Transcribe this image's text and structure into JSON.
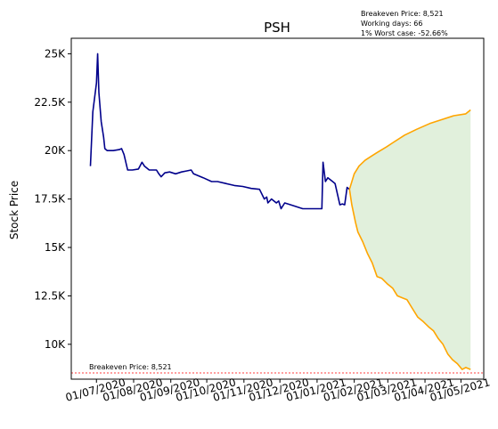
{
  "info_box": {
    "line1": "Breakeven Price: 8,521",
    "line2": "Working days: 66",
    "line3": "1% Worst case: -52.66%"
  },
  "chart_data": {
    "type": "line",
    "title": "PSH",
    "xlabel": "",
    "ylabel": "Stock Price",
    "ylim": [
      8200,
      25800
    ],
    "xlim": [
      "2020-06-10",
      "2021-05-20"
    ],
    "grid": false,
    "x_ticks": [
      "2020-07-01",
      "2020-08-01",
      "2020-09-01",
      "2020-10-01",
      "2020-11-01",
      "2020-12-01",
      "2021-01-01",
      "2021-02-01",
      "2021-03-01",
      "2021-04-01",
      "2021-05-01"
    ],
    "x_tick_labels": [
      "01/07/2020",
      "01/08/2020",
      "01/09/2020",
      "01/10/2020",
      "01/11/2020",
      "01/12/2020",
      "01/01/2021",
      "01/02/2021",
      "01/03/2021",
      "01/04/2021",
      "01/05/2021"
    ],
    "y_ticks": [
      10000,
      12500,
      15000,
      17500,
      20000,
      22500,
      25000
    ],
    "y_tick_labels": [
      "10K",
      "12.5K",
      "15K",
      "17.5K",
      "20K",
      "22.5K",
      "25K"
    ],
    "colors": {
      "history": "#00008b",
      "projection": "#ffa500",
      "band_fill": "#e1f0dc",
      "breakeven": "#ff0000"
    },
    "series": [
      {
        "role": "history",
        "x": [
          "2020-06-26",
          "2020-06-28",
          "2020-07-01",
          "2020-07-02",
          "2020-07-03",
          "2020-07-05",
          "2020-07-07",
          "2020-07-08",
          "2020-07-10",
          "2020-07-15",
          "2020-07-20",
          "2020-07-22",
          "2020-07-24",
          "2020-07-27",
          "2020-07-31",
          "2020-08-05",
          "2020-08-08",
          "2020-08-10",
          "2020-08-14",
          "2020-08-20",
          "2020-08-22",
          "2020-08-24",
          "2020-08-27",
          "2020-08-31",
          "2020-09-05",
          "2020-09-10",
          "2020-09-14",
          "2020-09-18",
          "2020-09-20",
          "2020-09-24",
          "2020-09-28",
          "2020-10-05",
          "2020-10-10",
          "2020-10-17",
          "2020-10-24",
          "2020-10-31",
          "2020-11-07",
          "2020-11-14",
          "2020-11-18",
          "2020-11-20",
          "2020-11-21",
          "2020-11-24",
          "2020-11-28",
          "2020-11-30",
          "2020-12-02",
          "2020-12-05",
          "2020-12-10",
          "2020-12-20",
          "2020-12-31",
          "2021-01-05",
          "2021-01-06",
          "2021-01-08",
          "2021-01-10",
          "2021-01-14",
          "2021-01-16",
          "2021-01-20",
          "2021-01-22",
          "2021-01-24",
          "2021-01-26",
          "2021-01-28"
        ],
        "y": [
          19200,
          22000,
          23500,
          25000,
          23000,
          21500,
          20700,
          20100,
          20000,
          20000,
          20050,
          20100,
          19800,
          19000,
          19000,
          19050,
          19400,
          19200,
          19000,
          19000,
          18800,
          18650,
          18850,
          18900,
          18800,
          18900,
          18950,
          19000,
          18800,
          18700,
          18600,
          18400,
          18400,
          18300,
          18200,
          18150,
          18050,
          18000,
          17500,
          17600,
          17300,
          17500,
          17300,
          17400,
          17000,
          17300,
          17200,
          17000,
          17000,
          17000,
          19400,
          18400,
          18600,
          18400,
          18300,
          17200,
          17250,
          17200,
          18100,
          18000
        ]
      },
      {
        "role": "projection-upper",
        "x": [
          "2021-01-28",
          "2021-02-01",
          "2021-02-05",
          "2021-02-10",
          "2021-02-15",
          "2021-02-20",
          "2021-02-28",
          "2021-03-05",
          "2021-03-15",
          "2021-03-25",
          "2021-04-05",
          "2021-04-15",
          "2021-04-25",
          "2021-05-05",
          "2021-05-09"
        ],
        "y": [
          18000,
          18800,
          19200,
          19500,
          19700,
          19900,
          20200,
          20400,
          20800,
          21100,
          21400,
          21600,
          21800,
          21900,
          22100
        ]
      },
      {
        "role": "projection-lower",
        "x": [
          "2021-01-28",
          "2021-01-30",
          "2021-02-02",
          "2021-02-04",
          "2021-02-08",
          "2021-02-12",
          "2021-02-16",
          "2021-02-20",
          "2021-02-24",
          "2021-03-01",
          "2021-03-05",
          "2021-03-09",
          "2021-03-13",
          "2021-03-17",
          "2021-03-21",
          "2021-03-26",
          "2021-03-30",
          "2021-04-04",
          "2021-04-08",
          "2021-04-12",
          "2021-04-16",
          "2021-04-20",
          "2021-04-24",
          "2021-04-28",
          "2021-05-02",
          "2021-05-05",
          "2021-05-09"
        ],
        "y": [
          18000,
          17200,
          16300,
          15800,
          15300,
          14700,
          14200,
          13500,
          13400,
          13100,
          12900,
          12500,
          12400,
          12300,
          11900,
          11400,
          11200,
          10900,
          10700,
          10300,
          10000,
          9500,
          9200,
          9000,
          8700,
          8800,
          8700
        ]
      }
    ],
    "breakeven": {
      "value": 8521,
      "label": "Breakeven Price: 8,521"
    }
  }
}
